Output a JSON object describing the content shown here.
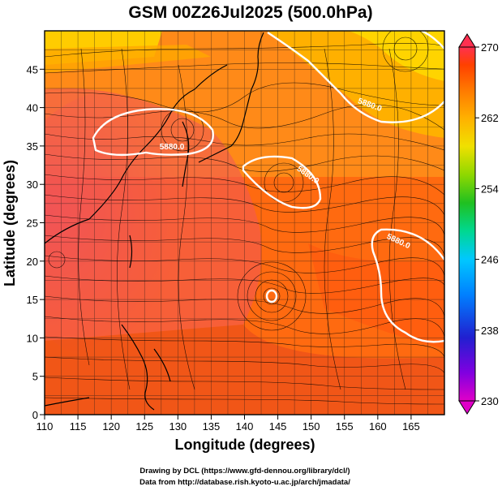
{
  "chart_data": {
    "type": "heatmap",
    "title": "GSM 00Z26Jul2025 (500.0hPa)",
    "xlabel": "Longitude (degrees)",
    "ylabel": "Latitude  (degrees)",
    "xlim": [
      110,
      170
    ],
    "ylim": [
      0,
      50
    ],
    "x_ticks": [
      110,
      115,
      120,
      125,
      130,
      135,
      140,
      145,
      150,
      155,
      160,
      165
    ],
    "y_ticks": [
      0,
      5,
      10,
      15,
      20,
      25,
      30,
      35,
      40,
      45
    ],
    "grid": true,
    "colorbar": {
      "min": 230,
      "max": 270,
      "ticks": [
        230,
        238,
        246,
        254,
        262,
        270
      ],
      "colors": [
        "#e000c8",
        "#8000e0",
        "#2020d0",
        "#0080ff",
        "#00c8ff",
        "#00d890",
        "#20c020",
        "#90d800",
        "#f0e000",
        "#ffb000",
        "#ff7800",
        "#ff4000",
        "#ff3050"
      ],
      "placement": "right"
    },
    "contours": [
      {
        "label": "5880.0",
        "region": "Yellow Sea / Korea"
      },
      {
        "label": "5880.0",
        "region": "south of Japan"
      },
      {
        "label": "5880.0",
        "region": "northwest Pacific"
      },
      {
        "label": "5880.0",
        "region": "northeast corner"
      },
      {
        "label": "",
        "region": "typhoon eye near 145E 17N"
      }
    ],
    "overlay": "wind streamlines"
  },
  "credits": {
    "line1": "Drawing by DCL (https://www.gfd-dennou.org/library/dcl/)",
    "line2": "Data from http://database.rish.kyoto-u.ac.jp/arch/jmadata/"
  }
}
